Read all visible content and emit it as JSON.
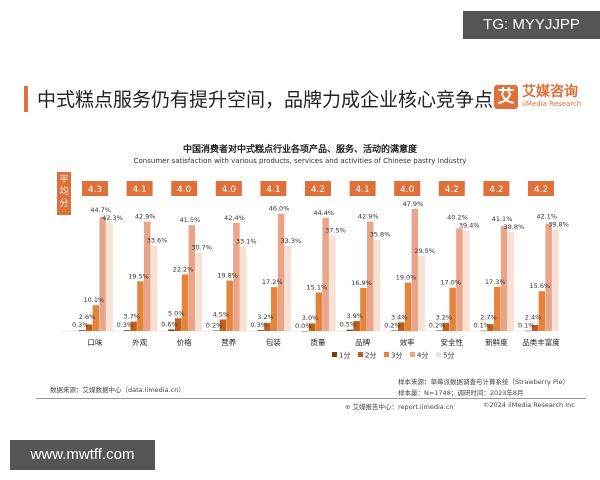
{
  "watermarks": {
    "top": "TG: MYYJJPP",
    "bottom": "www.mwtff.com"
  },
  "header": {
    "title": "中式糕点服务仍有提升空间，品牌力成企业核心竞争点",
    "logo_mark": "艾",
    "logo_cn": "艾媒咨询",
    "logo_en": "iiMedia Research"
  },
  "chart_data": {
    "type": "bar",
    "title": "中国消费者对中式糕点行业各项产品、服务、活动的满意度",
    "subtitle": "Consumer satisfaction with various products, services and activities of Chinese pastry industry",
    "categories": [
      "口味",
      "外观",
      "价格",
      "营养",
      "包装",
      "质量",
      "品牌",
      "效率",
      "安全性",
      "新鲜度",
      "品类丰富度"
    ],
    "series": [
      {
        "name": "1分",
        "color": "#7a3e12",
        "values": [
          0.3,
          0.3,
          0.6,
          0.2,
          0.3,
          0.0,
          0.5,
          0.2,
          0.2,
          0.1,
          0.1
        ]
      },
      {
        "name": "2分",
        "color": "#c0601c",
        "values": [
          2.6,
          3.7,
          5.0,
          4.5,
          3.2,
          3.0,
          3.9,
          3.4,
          3.2,
          2.7,
          2.4
        ]
      },
      {
        "name": "3分",
        "color": "#e5843c",
        "values": [
          10.1,
          19.5,
          22.2,
          19.8,
          17.2,
          15.1,
          16.9,
          19.0,
          17.0,
          17.3,
          15.6
        ]
      },
      {
        "name": "4分",
        "color": "#e8a58a",
        "values": [
          44.7,
          42.9,
          41.5,
          42.4,
          46.0,
          44.4,
          42.9,
          47.9,
          40.2,
          41.1,
          42.1
        ]
      },
      {
        "name": "5分",
        "color": "#f8e0d4",
        "values": [
          42.3,
          33.6,
          30.7,
          33.1,
          33.3,
          37.5,
          35.8,
          29.5,
          39.4,
          38.8,
          39.8
        ]
      }
    ],
    "average_label": "平均分",
    "averages": [
      "4.3",
      "4.1",
      "4.0",
      "4.0",
      "4.1",
      "4.2",
      "4.1",
      "4.0",
      "4.2",
      "4.2",
      "4.2"
    ],
    "value_suffix": "%",
    "accent": "#e0703a",
    "legend": "bottom-right"
  },
  "footer": {
    "source": "数据来源：艾媒数据中心（data.iimedia.cn）",
    "sample_source": "样本来源：草莓派数据调查与计算系统（Strawberry Pie）",
    "sample_size": "样本量：N=1748；调研时间：2023年8月",
    "report_center": "艾媒报告中心：report.iimedia.cn",
    "copyright": "©2024  iiMedia Research  Inc"
  }
}
